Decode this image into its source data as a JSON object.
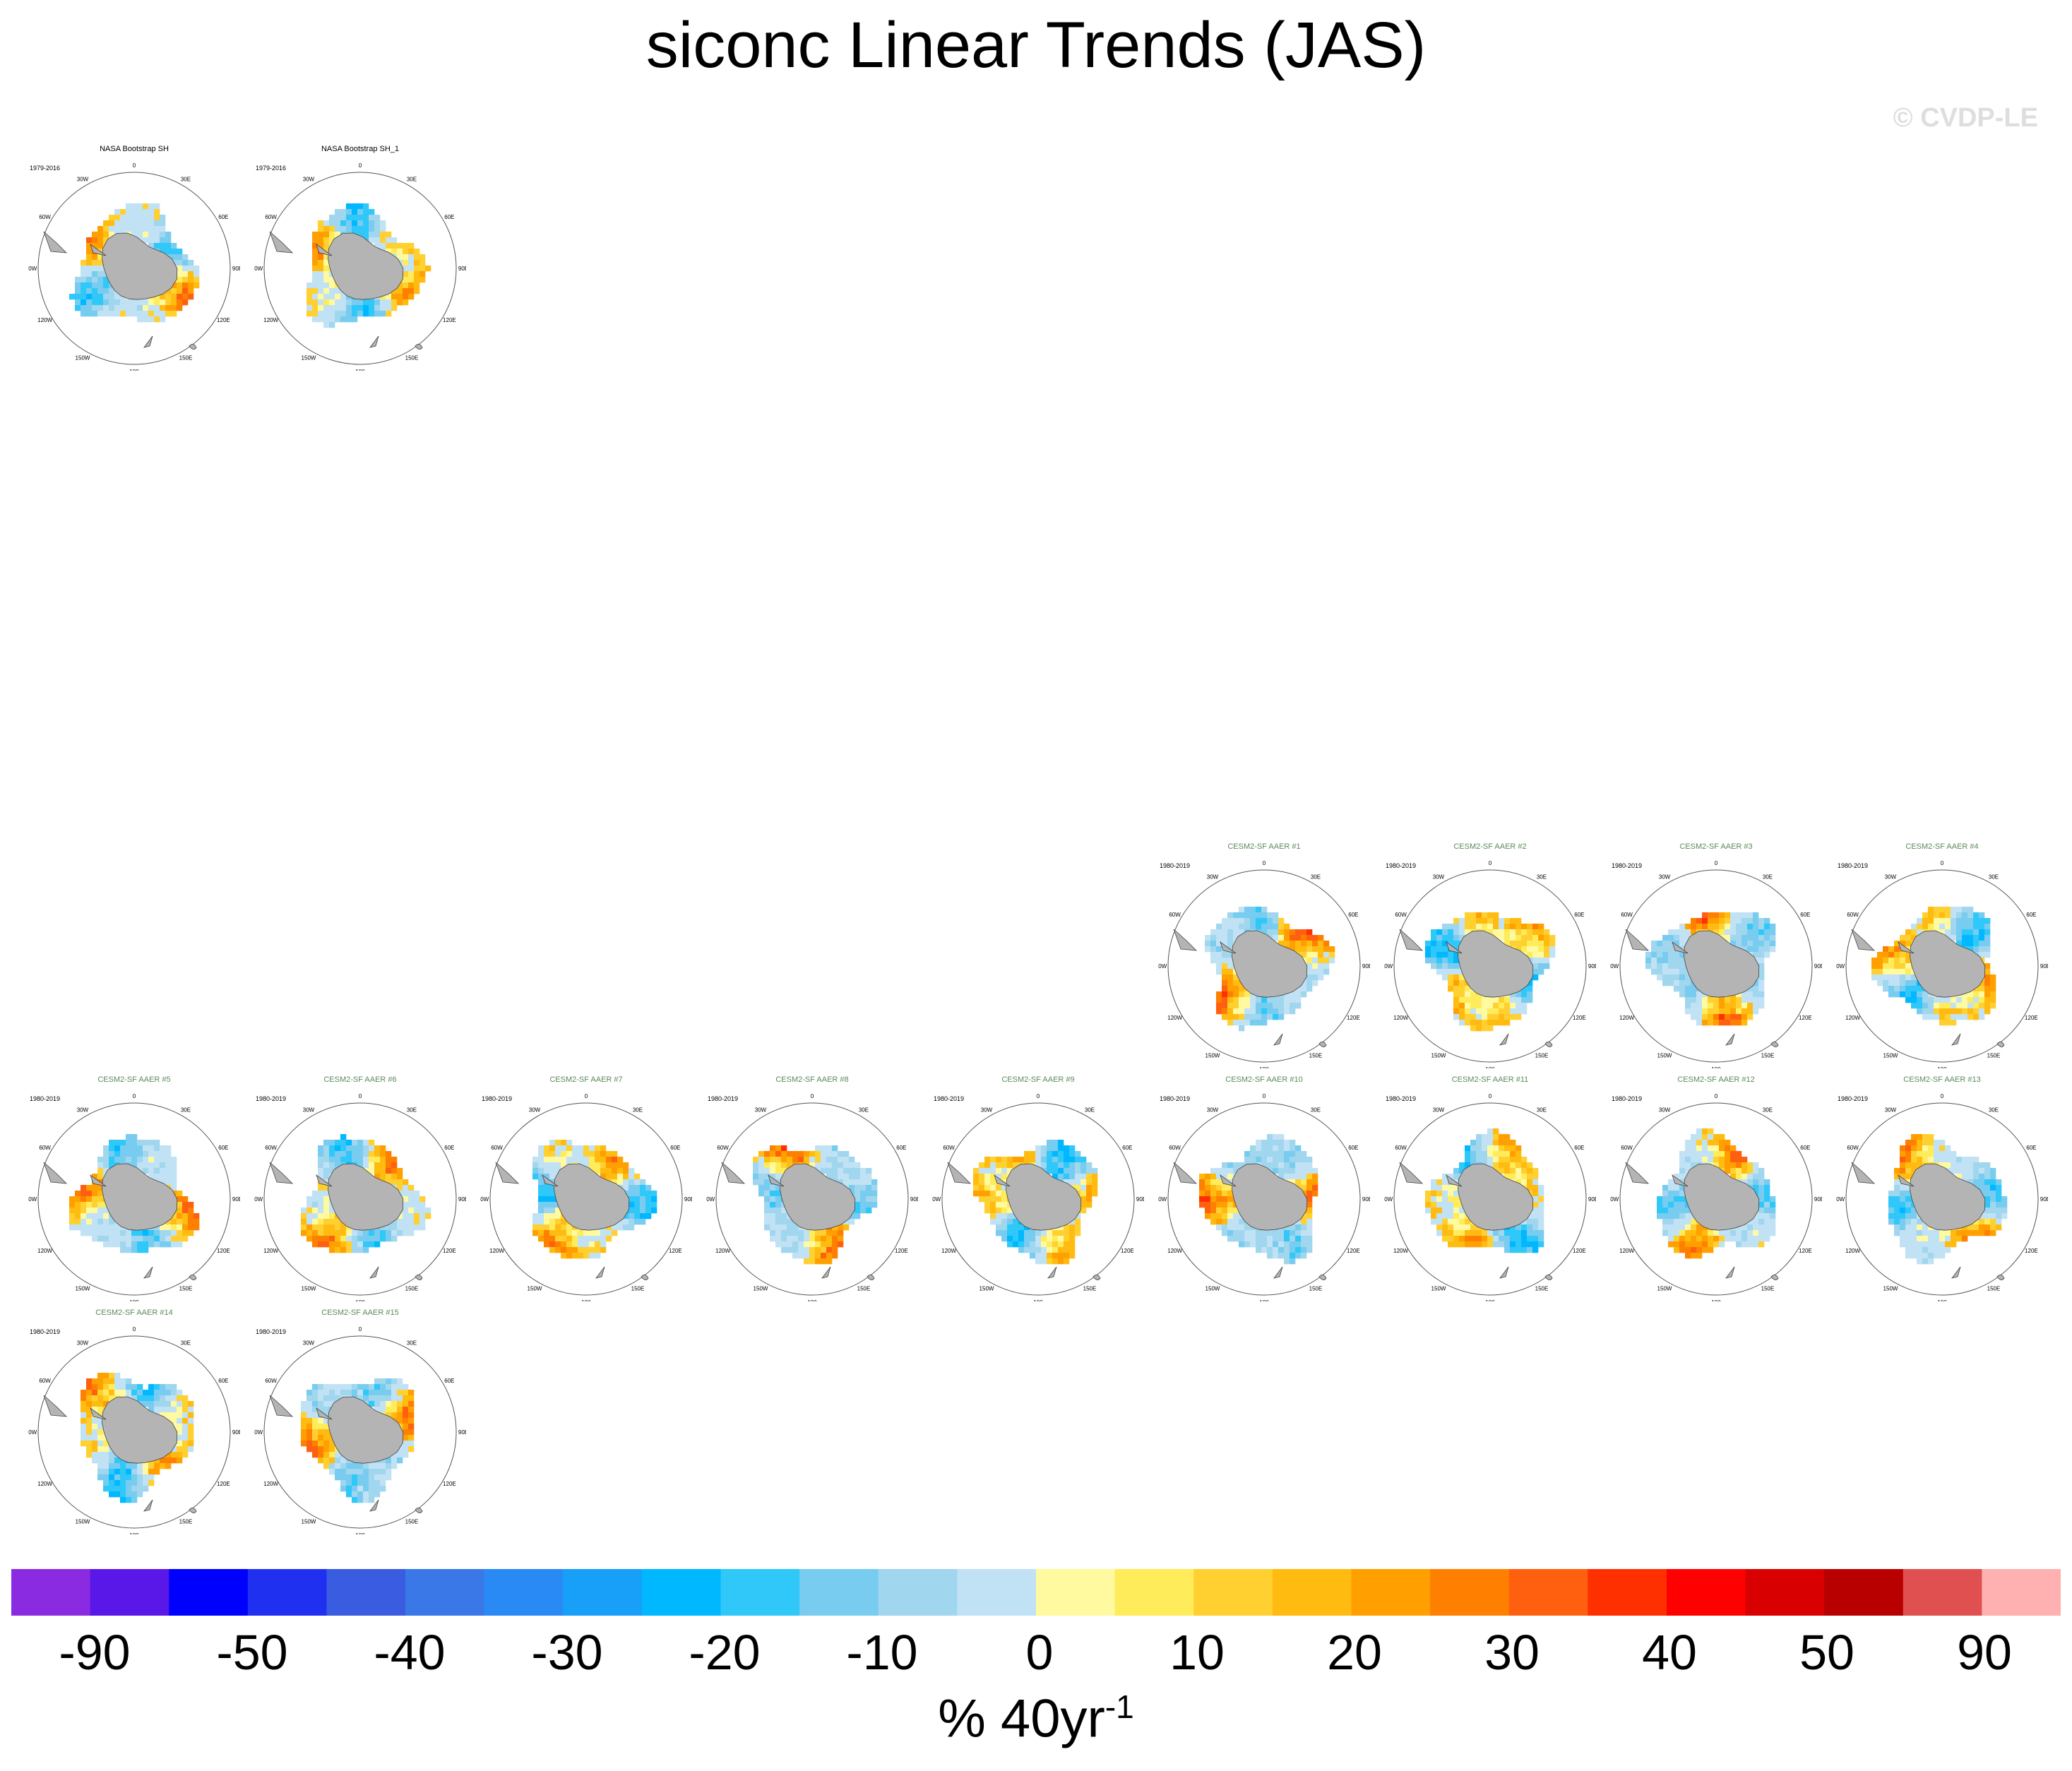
{
  "title": "siconc Linear Trends (JAS)",
  "copyright": "© CVDP-LE",
  "colors": {
    "obs_title": "#000000",
    "model_title": "#5a8a5a",
    "land": "#b4b4b4"
  },
  "map_labels": {
    "top": "0",
    "right_top": "30E",
    "left_top": "30W",
    "e60": "60E",
    "w60": "60W",
    "e90": "90E",
    "w90": "90W",
    "e120": "120E",
    "w120": "120W",
    "e150": "150E",
    "w150": "150W",
    "bottom": "180"
  },
  "panels": [
    {
      "title": "NASA Bootstrap SH",
      "years": "1979-2016",
      "kind": "obs"
    },
    {
      "title": "NASA Bootstrap SH_1",
      "years": "1979-2016",
      "kind": "obs"
    },
    {
      "title": "CESM2-SF AAER #1",
      "years": "1980-2019",
      "kind": "model"
    },
    {
      "title": "CESM2-SF AAER #2",
      "years": "1980-2019",
      "kind": "model"
    },
    {
      "title": "CESM2-SF AAER #3",
      "years": "1980-2019",
      "kind": "model"
    },
    {
      "title": "CESM2-SF AAER #4",
      "years": "1980-2019",
      "kind": "model"
    },
    {
      "title": "CESM2-SF AAER #5",
      "years": "1980-2019",
      "kind": "model"
    },
    {
      "title": "CESM2-SF AAER #6",
      "years": "1980-2019",
      "kind": "model"
    },
    {
      "title": "CESM2-SF AAER #7",
      "years": "1980-2019",
      "kind": "model"
    },
    {
      "title": "CESM2-SF AAER #8",
      "years": "1980-2019",
      "kind": "model"
    },
    {
      "title": "CESM2-SF AAER #9",
      "years": "1980-2019",
      "kind": "model"
    },
    {
      "title": "CESM2-SF AAER #10",
      "years": "1980-2019",
      "kind": "model"
    },
    {
      "title": "CESM2-SF AAER #11",
      "years": "1980-2019",
      "kind": "model"
    },
    {
      "title": "CESM2-SF AAER #12",
      "years": "1980-2019",
      "kind": "model"
    },
    {
      "title": "CESM2-SF AAER #13",
      "years": "1980-2019",
      "kind": "model"
    },
    {
      "title": "CESM2-SF AAER #14",
      "years": "1980-2019",
      "kind": "model"
    },
    {
      "title": "CESM2-SF AAER #15",
      "years": "1980-2019",
      "kind": "model"
    }
  ],
  "chart_data": {
    "type": "heatmap",
    "title": "siconc Linear Trends (JAS)",
    "projection": "south polar stereographic",
    "units_prefix": "% 40yr",
    "units_exponent": "-1",
    "colorbar": {
      "colors": [
        "#8a2be2",
        "#5a18e8",
        "#0000ff",
        "#2030f0",
        "#3a5ce0",
        "#3a78e8",
        "#2a8af5",
        "#18a0f8",
        "#00b8ff",
        "#30c8f8",
        "#78ccf0",
        "#a0d6ee",
        "#c0e2f4",
        "#fffaa0",
        "#ffec5a",
        "#ffd030",
        "#ffbb10",
        "#ffa000",
        "#ff8000",
        "#ff6010",
        "#ff3000",
        "#ff0000",
        "#d80000",
        "#b80000",
        "#e05050",
        "#ffb0b0"
      ],
      "tick_labels": [
        "-90",
        "-50",
        "-40",
        "-30",
        "-20",
        "-10",
        "0",
        "10",
        "20",
        "30",
        "40",
        "50",
        "90"
      ]
    }
  }
}
